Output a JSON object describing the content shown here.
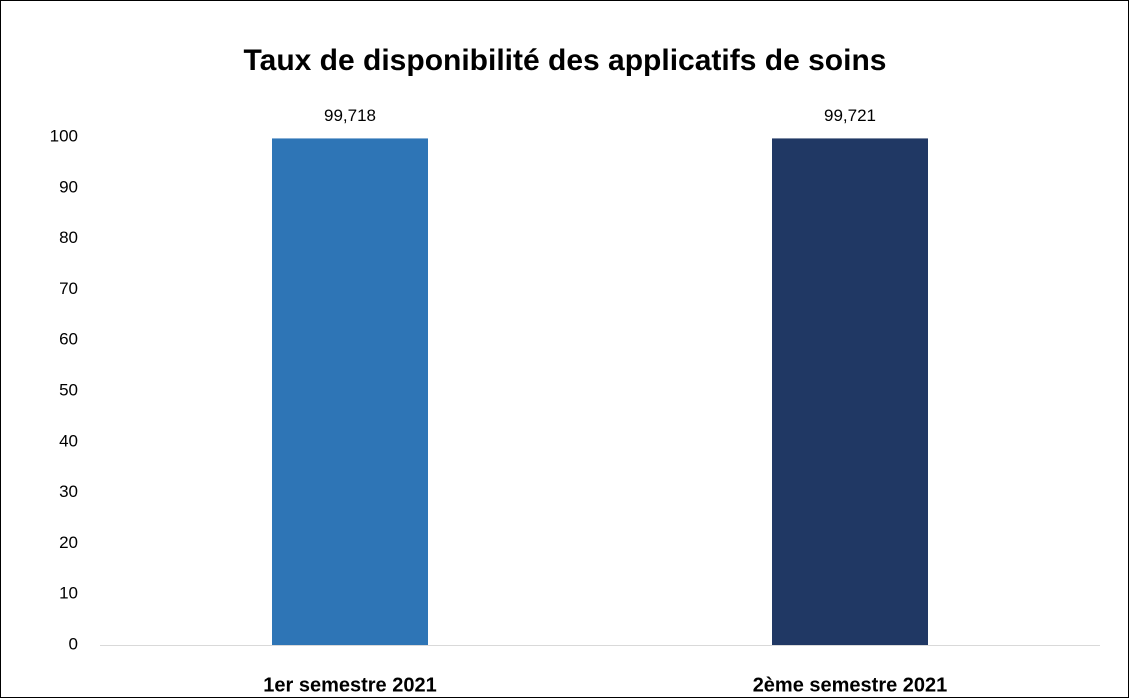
{
  "chart_data": {
    "type": "bar",
    "title": "Taux de disponibilité des applicatifs de soins",
    "categories": [
      "1er semestre 2021",
      "2ème semestre 2021"
    ],
    "values": [
      99.718,
      99.721
    ],
    "value_labels": [
      "99,718",
      "99,721"
    ],
    "colors": [
      "#2e75b6",
      "#203864"
    ],
    "ylim": [
      0,
      100
    ],
    "yticks": [
      0,
      10,
      20,
      30,
      40,
      50,
      60,
      70,
      80,
      90,
      100
    ],
    "grid": false
  }
}
